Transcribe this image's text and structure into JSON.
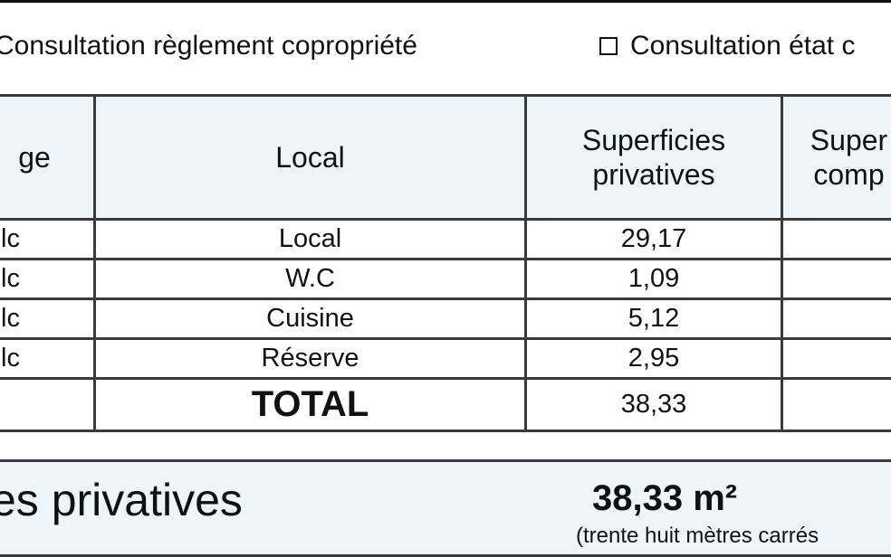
{
  "consultation": {
    "item1": "Consultation règlement copropriété",
    "item2": "Consultation état c"
  },
  "table": {
    "headers": [
      "ge",
      "Local",
      "Superficies privatives",
      "Super comp"
    ],
    "header_lines": {
      "col2": [
        "Superficies",
        "privatives"
      ],
      "col3": [
        "Super",
        "comp"
      ]
    },
    "rows": [
      {
        "floor": "lc",
        "local": "Local",
        "superficie": "29,17"
      },
      {
        "floor": "lc",
        "local": "W.C",
        "superficie": "1,09"
      },
      {
        "floor": "lc",
        "local": "Cuisine",
        "superficie": "5,12"
      },
      {
        "floor": "lc",
        "local": "Réserve",
        "superficie": "2,95"
      }
    ],
    "total_label": "TOTAL",
    "total_value": "38,33"
  },
  "summary": {
    "label": "es privatives",
    "value": "38,33 m²",
    "in_words": "(trente huit mètres carrés"
  }
}
